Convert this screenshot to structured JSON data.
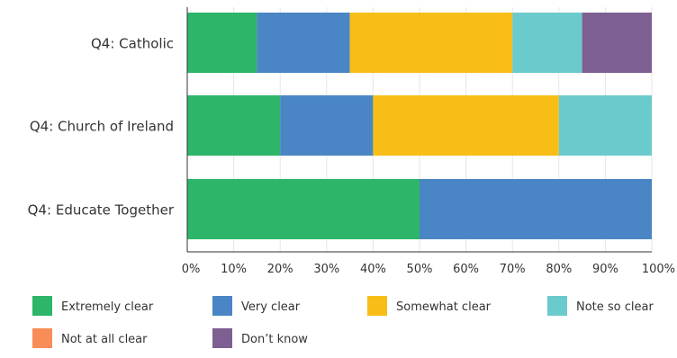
{
  "chart_data": {
    "type": "bar",
    "orientation": "horizontal",
    "stacked": true,
    "categories": [
      "Q4: Catholic",
      "Q4: Church of Ireland",
      "Q4: Educate Together"
    ],
    "series": [
      {
        "name": "Extremely clear",
        "color": "#2db56a",
        "values": [
          15,
          20,
          50
        ]
      },
      {
        "name": "Very clear",
        "color": "#4a86c5",
        "values": [
          20,
          20,
          50
        ]
      },
      {
        "name": "Somewhat clear",
        "color": "#f8be17",
        "values": [
          35,
          40,
          0
        ]
      },
      {
        "name": "Note so clear",
        "color": "#6bcacb",
        "values": [
          15,
          20,
          0
        ]
      },
      {
        "name": "Not at all clear",
        "color": "#f88d57",
        "values": [
          0,
          0,
          0
        ]
      },
      {
        "name": "Don’t know",
        "color": "#7d5f92",
        "values": [
          15,
          0,
          0
        ]
      }
    ],
    "xlim": [
      0,
      100
    ],
    "x_ticks": [
      "0%",
      "10%",
      "20%",
      "30%",
      "40%",
      "50%",
      "60%",
      "70%",
      "80%",
      "90%",
      "100%"
    ],
    "grid": true,
    "legend_position": "bottom"
  }
}
